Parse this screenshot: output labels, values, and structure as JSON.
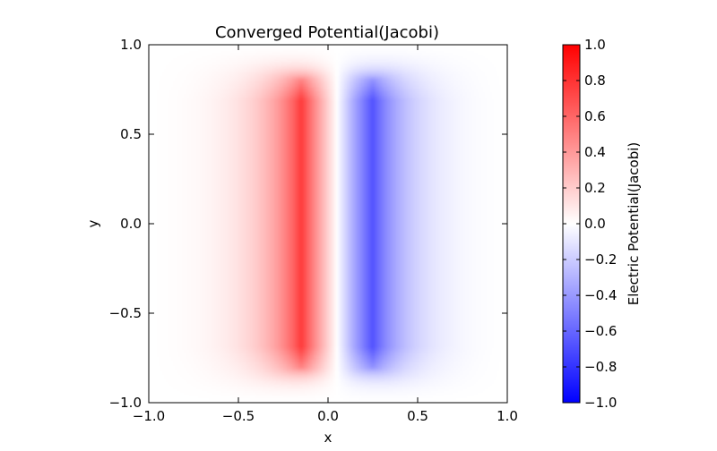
{
  "chart_data": {
    "type": "heatmap",
    "title": "Converged Potential(Jacobi)",
    "xlabel": "x",
    "ylabel": "y",
    "xlim": [
      -1.0,
      1.0
    ],
    "ylim": [
      -1.0,
      1.0
    ],
    "x_ticks": [
      -1.0,
      -0.5,
      0.0,
      0.5,
      1.0
    ],
    "y_ticks": [
      -1.0,
      -0.5,
      0.0,
      0.5,
      1.0
    ],
    "x_tick_labels": [
      "−1.0",
      "−0.5",
      "0.0",
      "0.5",
      "1.0"
    ],
    "y_tick_labels": [
      "−1.0",
      "−0.5",
      "0.0",
      "0.5",
      "1.0"
    ],
    "colormap": "bwr",
    "colormap_colors": {
      "low": "#0000ff",
      "mid": "#ffffff",
      "high": "#ff0000"
    },
    "clim": [
      -1.0,
      1.0
    ],
    "colorbar": {
      "label": "Electric Potential(Jacobi)",
      "ticks": [
        -1.0,
        -0.8,
        -0.6,
        -0.4,
        -0.2,
        0.0,
        0.2,
        0.4,
        0.6,
        0.8,
        1.0
      ],
      "tick_labels": [
        "−1.0",
        "−0.8",
        "−0.6",
        "−0.4",
        "−0.2",
        "0.0",
        "0.2",
        "0.4",
        "0.6",
        "0.8",
        "1.0"
      ]
    },
    "plates": [
      {
        "potential": 1.0,
        "x": -0.15,
        "y_range": [
          -0.8,
          0.8
        ]
      },
      {
        "potential": -1.0,
        "x": 0.25,
        "y_range": [
          -0.8,
          0.8
        ]
      }
    ],
    "grid": false
  }
}
